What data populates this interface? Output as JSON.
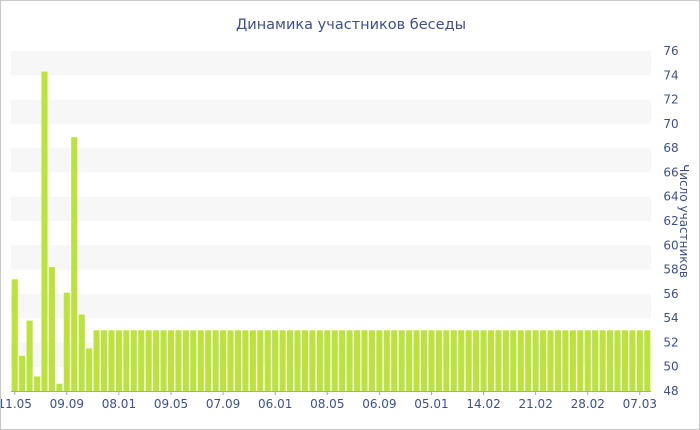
{
  "chart_data": {
    "type": "bar",
    "title": "Динамика участников беседы",
    "ylabel": "Число участников",
    "ylim": [
      48,
      76
    ],
    "yticks": [
      48,
      50,
      52,
      54,
      56,
      58,
      60,
      62,
      64,
      66,
      68,
      70,
      72,
      74,
      76
    ],
    "y_axis_position": "right",
    "grid": "alternating horizontal bands",
    "xtick_labels": [
      "11.05",
      "09.09",
      "08.01",
      "09.05",
      "07.09",
      "06.01",
      "08.05",
      "06.09",
      "05.01",
      "14.02",
      "21.02",
      "28.02",
      "07.03"
    ],
    "xtick_bar_index": [
      0,
      7,
      14,
      21,
      28,
      35,
      42,
      49,
      56,
      63,
      70,
      77,
      84
    ],
    "values": [
      57.2,
      50.9,
      53.8,
      49.2,
      74.3,
      58.2,
      48.6,
      56.1,
      68.9,
      54.3,
      51.5,
      53,
      53,
      53,
      53,
      53,
      53,
      53,
      53,
      53,
      53,
      53,
      53,
      53,
      53,
      53,
      53,
      53,
      53,
      53,
      53,
      53,
      53,
      53,
      53,
      53,
      53,
      53,
      53,
      53,
      53,
      53,
      53,
      53,
      53,
      53,
      53,
      53,
      53,
      53,
      53,
      53,
      53,
      53,
      53,
      53,
      53,
      53,
      53,
      53,
      53,
      53,
      53,
      53,
      53,
      53,
      53,
      53,
      53,
      53,
      53,
      53,
      53,
      53,
      53,
      53,
      53,
      53,
      53,
      53,
      53,
      53,
      53,
      53,
      53,
      53
    ],
    "colors": {
      "bar": "#bbe33b",
      "band": "#f7f7f7",
      "text": "#3e4f8f",
      "axis": "#9ea6c4"
    }
  }
}
